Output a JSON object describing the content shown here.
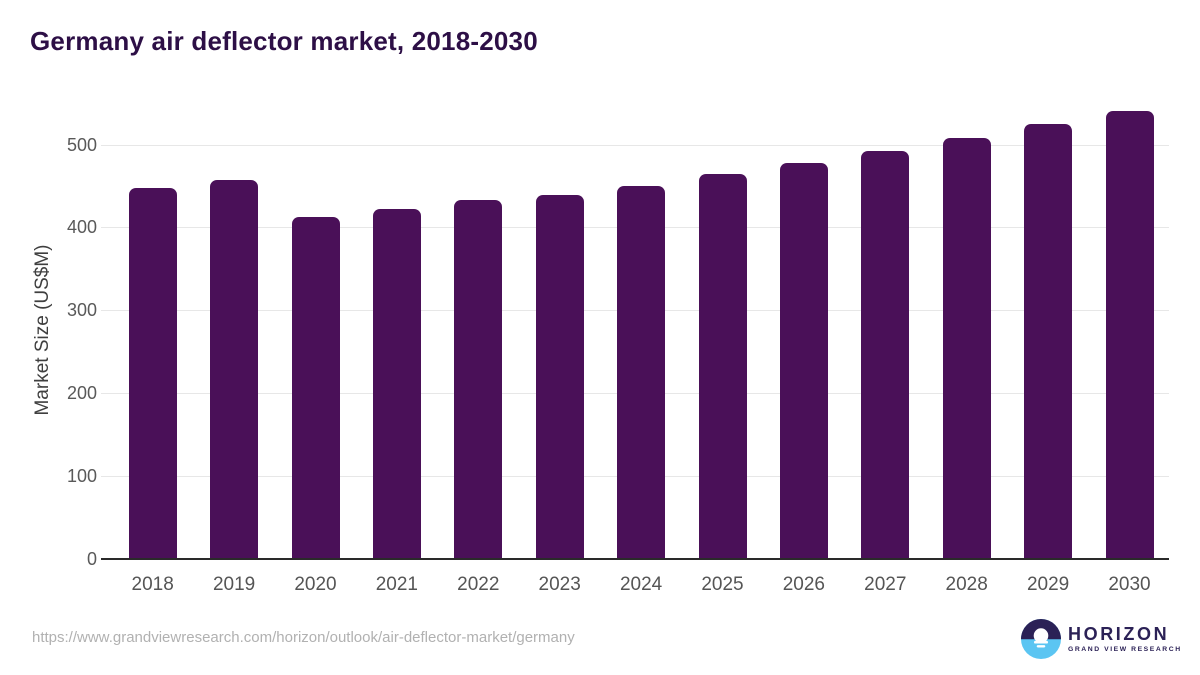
{
  "header": {
    "title": "Germany air deflector market, 2018-2030"
  },
  "chart_data": {
    "type": "bar",
    "title": "Germany air deflector market, 2018-2030",
    "categories": [
      "2018",
      "2019",
      "2020",
      "2021",
      "2022",
      "2023",
      "2024",
      "2025",
      "2026",
      "2027",
      "2028",
      "2029",
      "2030"
    ],
    "values": [
      447,
      457,
      413,
      422,
      433,
      439,
      450,
      464,
      478,
      492,
      508,
      525,
      541
    ],
    "xlabel": "",
    "ylabel": "Market Size (US$M)",
    "ylim": [
      0,
      555
    ],
    "yticks": [
      0,
      100,
      200,
      300,
      400,
      500
    ],
    "grid": "horizontal-light",
    "legend": false,
    "bar_color": "#4a1058"
  },
  "footer": {
    "source_url": "https://www.grandviewresearch.com/horizon/outlook/air-deflector-market/germany",
    "logo": {
      "brand": "HORIZON",
      "subbrand": "GRAND VIEW RESEARCH"
    }
  },
  "colors": {
    "title": "#2d0f46",
    "bar": "#4a1058",
    "tick_label": "#595959",
    "gridline": "#e7e7e7",
    "axis_line": "#2a2a2a",
    "url_text": "#b1b1b1",
    "logo_navy": "#2b2156",
    "logo_blue": "#5bc5f2"
  }
}
